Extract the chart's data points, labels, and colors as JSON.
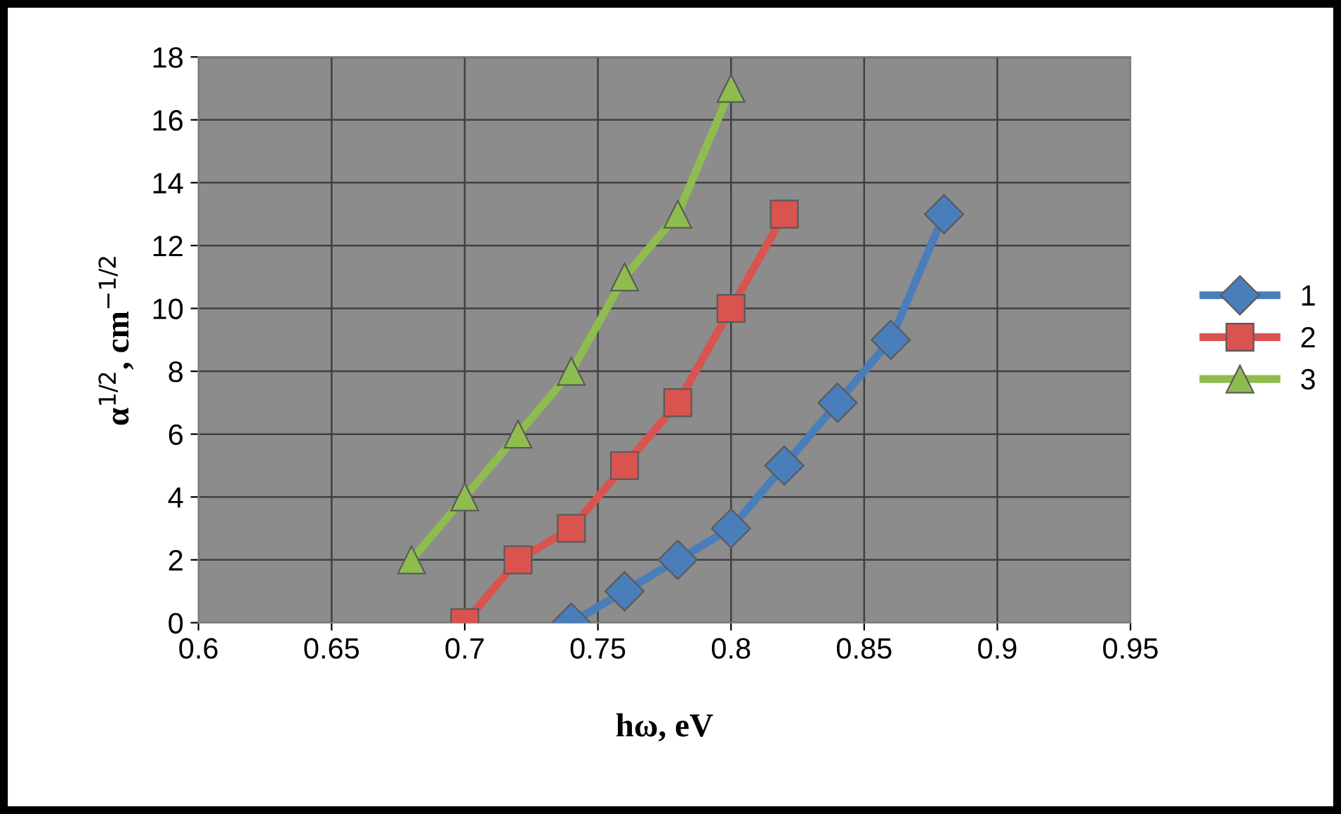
{
  "chart_data": {
    "type": "line",
    "xlabel": "hω, eV",
    "ylabel": "α$^{1/2}$, cm$^{−1/2}$",
    "xlim": [
      0.6,
      0.95
    ],
    "xticks": [
      0.6,
      0.65,
      0.7,
      0.75,
      0.8,
      0.85,
      0.9,
      0.95
    ],
    "ylim": [
      0,
      18
    ],
    "yticks": [
      0,
      2,
      4,
      6,
      8,
      10,
      12,
      14,
      16,
      18
    ],
    "grid": true,
    "legend": "right",
    "line_style": "solid",
    "series": [
      {
        "name": "1",
        "color": "#4a7ebb",
        "marker": "diamond",
        "x": [
          0.74,
          0.76,
          0.78,
          0.8,
          0.82,
          0.84,
          0.86,
          0.88
        ],
        "values": [
          0,
          1,
          2,
          3,
          5,
          7,
          9,
          13
        ]
      },
      {
        "name": "2",
        "color": "#d9534f",
        "marker": "square",
        "x": [
          0.7,
          0.72,
          0.74,
          0.76,
          0.78,
          0.8,
          0.82
        ],
        "values": [
          0,
          2,
          3,
          5,
          7,
          10,
          13
        ]
      },
      {
        "name": "3",
        "color": "#8fbc4f",
        "marker": "triangle",
        "x": [
          0.68,
          0.7,
          0.72,
          0.74,
          0.76,
          0.78,
          0.8
        ],
        "values": [
          2,
          4,
          6,
          8,
          11,
          13,
          17
        ]
      }
    ]
  }
}
